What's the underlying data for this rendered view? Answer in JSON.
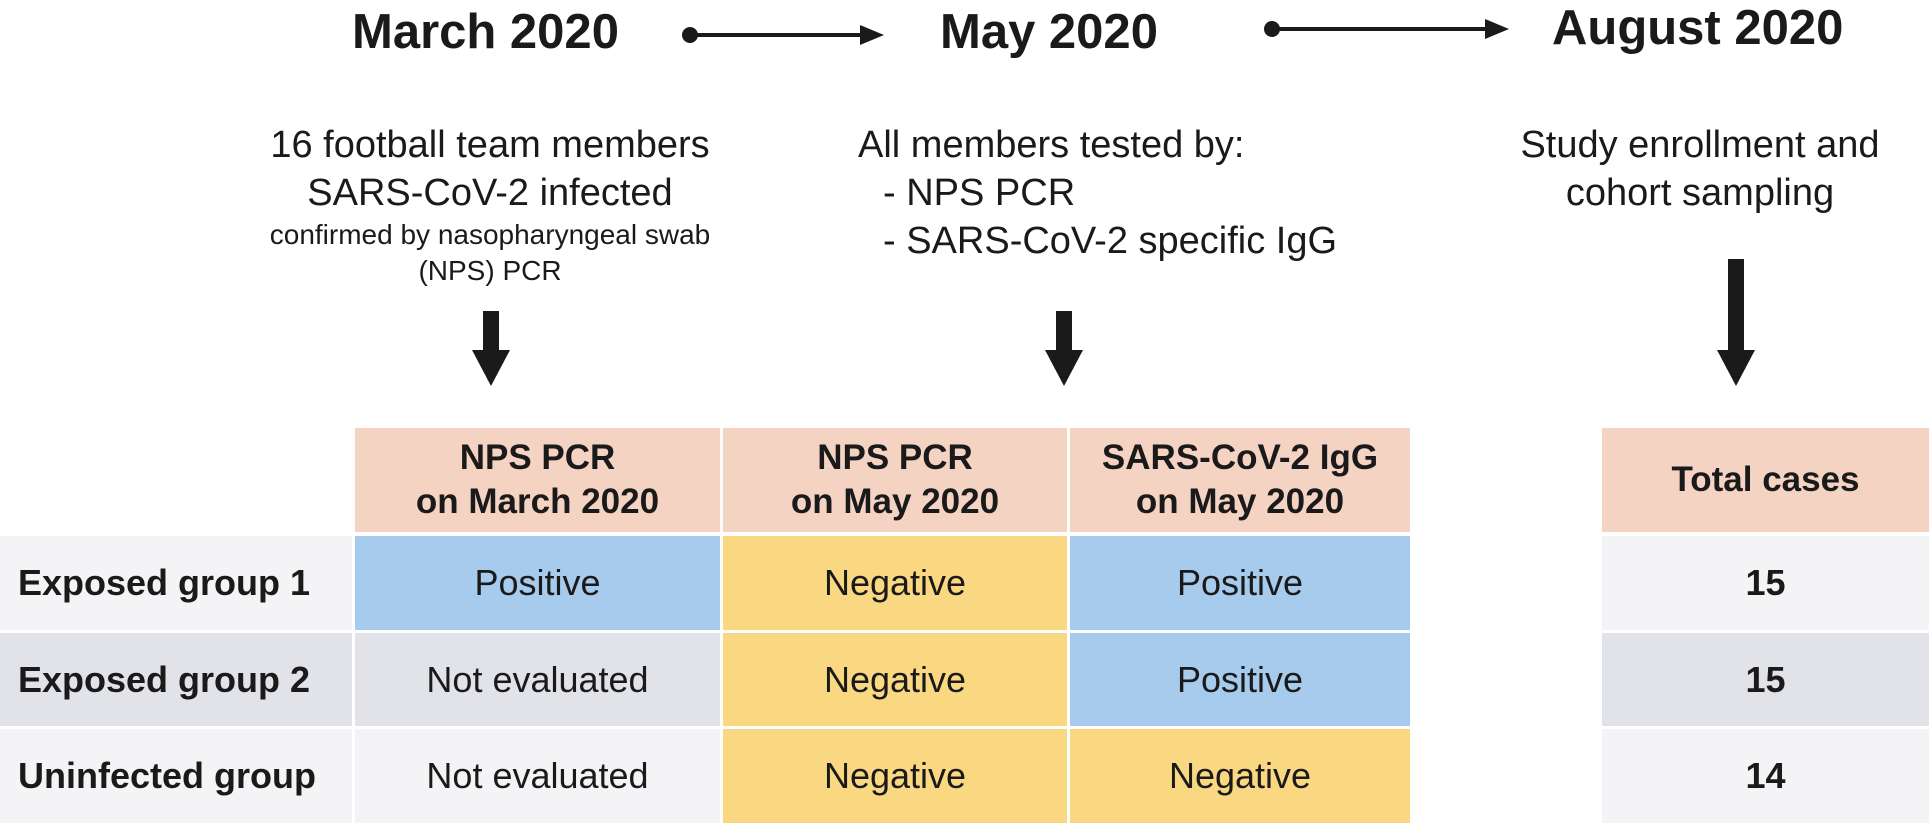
{
  "timeline": {
    "dates": [
      "March 2020",
      "May 2020",
      "August 2020"
    ],
    "march_text": {
      "line1": "16 football team members",
      "line2": "SARS-CoV-2 infected",
      "line3": "confirmed by nasopharyngeal swab",
      "line4": "(NPS) PCR"
    },
    "may_text": {
      "line1": "All members tested by:",
      "line2": "- NPS PCR",
      "line3": "- SARS-CoV-2 specific IgG"
    },
    "august_text": {
      "line1": "Study enrollment and",
      "line2": "cohort sampling"
    }
  },
  "table": {
    "headers": {
      "col1": {
        "line1": "NPS PCR",
        "line2": "on March 2020"
      },
      "col2": {
        "line1": "NPS PCR",
        "line2": "on May 2020"
      },
      "col3": {
        "line1": "SARS-CoV-2 IgG",
        "line2": "on May 2020"
      },
      "total": "Total cases"
    },
    "rows": [
      {
        "label": "Exposed group 1",
        "march_pcr": "Positive",
        "may_pcr": "Negative",
        "may_igg": "Positive",
        "total": "15"
      },
      {
        "label": "Exposed group 2",
        "march_pcr": "Not evaluated",
        "may_pcr": "Negative",
        "may_igg": "Positive",
        "total": "15"
      },
      {
        "label": "Uninfected group",
        "march_pcr": "Not evaluated",
        "may_pcr": "Negative",
        "may_igg": "Negative",
        "total": "14"
      }
    ]
  },
  "colors": {
    "header": "#f4d3c3",
    "positive": "#a6cbec",
    "negative": "#fad882",
    "not_evaluated_light": "#f4f4f6",
    "not_evaluated_dark": "#e2e3e8",
    "arrow": "#1a1a1a"
  },
  "icons": [
    "timeline-arrow-right",
    "down-arrow"
  ]
}
